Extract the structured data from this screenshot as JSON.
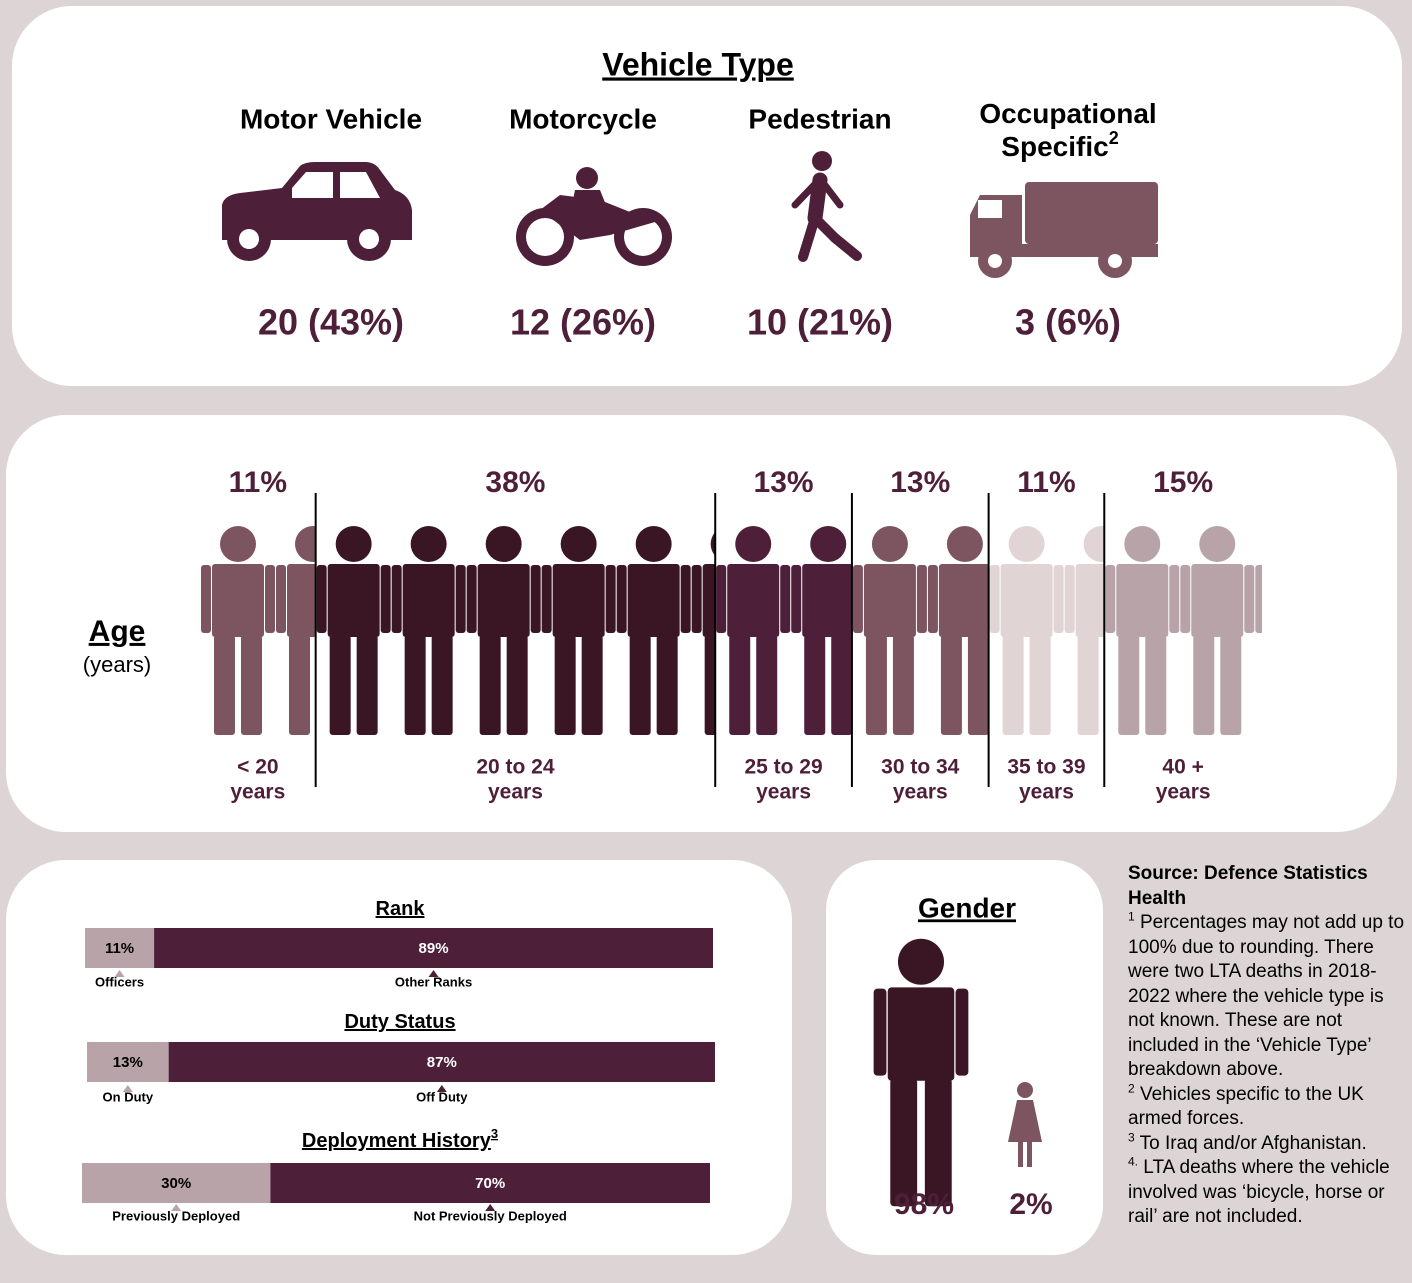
{
  "vehicle": {
    "title": "Vehicle Type",
    "items": [
      {
        "name": "Motor Vehicle",
        "count": "20 (43%)"
      },
      {
        "name": "Motorcycle",
        "count": "12 (26%)"
      },
      {
        "name": "Pedestrian",
        "count": "10 (21%)"
      },
      {
        "name": "Occupational Specific",
        "note": "2",
        "count": "3 (6%)"
      }
    ]
  },
  "age": {
    "title": "Age",
    "unit": "(years)",
    "groups": [
      {
        "label": "11%",
        "value": 11,
        "range": [
          "< 20",
          "years"
        ],
        "color": "#7d5560"
      },
      {
        "label": "38%",
        "value": 38,
        "range": [
          "20 to 24",
          "years"
        ],
        "color": "#3a1624"
      },
      {
        "label": "13%",
        "value": 13,
        "range": [
          "25 to 29",
          "years"
        ],
        "color": "#4e1f38"
      },
      {
        "label": "13%",
        "value": 13,
        "range": [
          "30 to 34",
          "years"
        ],
        "color": "#7d5560"
      },
      {
        "label": "11%",
        "value": 11,
        "range": [
          "35 to 39",
          "years"
        ],
        "color": "#e0d4d4"
      },
      {
        "label": "15%",
        "value": 15,
        "range": [
          "40 +",
          "years"
        ],
        "color": "#b8a4a8"
      }
    ]
  },
  "bars": [
    {
      "title": "Rank",
      "segments": [
        {
          "value": 11,
          "label": "11%",
          "name": "Officers"
        },
        {
          "value": 89,
          "label": "89%",
          "name": "Other Ranks"
        }
      ]
    },
    {
      "title": "Duty Status",
      "segments": [
        {
          "value": 13,
          "label": "13%",
          "name": "On Duty"
        },
        {
          "value": 87,
          "label": "87%",
          "name": "Off Duty"
        }
      ]
    },
    {
      "title": "Deployment History",
      "note": "3",
      "segments": [
        {
          "value": 30,
          "label": "30%",
          "name": "Previously Deployed"
        },
        {
          "value": 70,
          "label": "70%",
          "name": "Not Previously Deployed"
        }
      ]
    }
  ],
  "gender": {
    "title": "Gender",
    "items": [
      {
        "label": "98%"
      },
      {
        "label": "2%"
      }
    ]
  },
  "footnotes": {
    "source": "Source: Defence Statistics Health",
    "notes": [
      {
        "marker": "1",
        "text": "Percentages may not add up to 100% due to rounding. There were two LTA deaths in 2018-2022 where the vehicle type is not known. These are not included in the ‘Vehicle Type’ breakdown above."
      },
      {
        "marker": "2",
        "text": "Vehicles specific to the UK armed forces."
      },
      {
        "marker": "3",
        "text": "To Iraq and/or Afghanistan."
      },
      {
        "marker": "4.",
        "text": "LTA deaths where the vehicle involved was ‘bicycle, horse or rail’ are not included."
      }
    ]
  }
}
